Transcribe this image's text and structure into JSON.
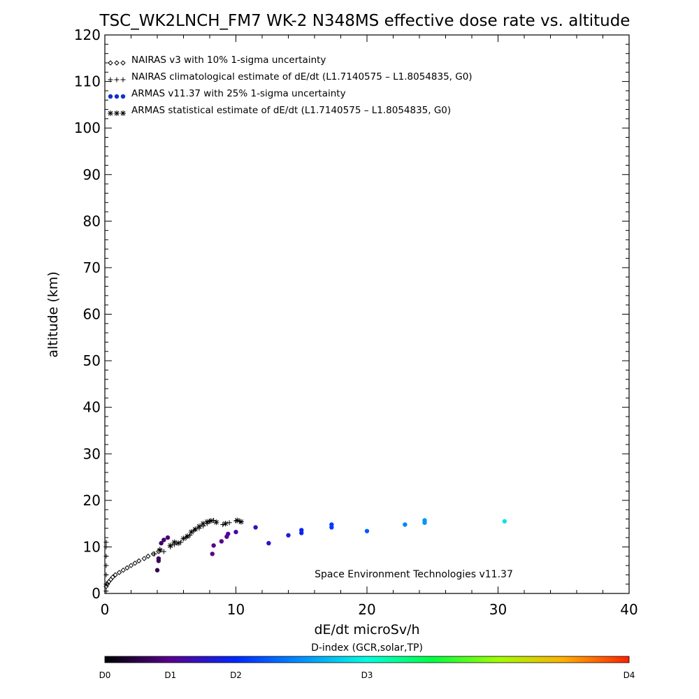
{
  "title": "TSC_WK2LNCH_FM7 WK-2 N348MS effective dose rate vs. altitude",
  "footer_text": "Space Environment Technologies v11.37",
  "legend": [
    {
      "symbol": "◇◇◇",
      "label": "NAIRAS v3 with 10% 1-sigma uncertainty"
    },
    {
      "symbol": "+++",
      "label": "NAIRAS climatological estimate of dE/dt (L1.7140575 – L1.8054835, G0)"
    },
    {
      "symbol": "●●●",
      "label": "ARMAS v11.37 with 25% 1-sigma uncertainty"
    },
    {
      "symbol": "***",
      "label": "ARMAS statistical estimate of dE/dt (L1.7140575 – L1.8054835, G0)"
    }
  ],
  "colorbar": {
    "label": "D-index (GCR,solar,TP)",
    "ticks": [
      {
        "label": "D0",
        "pos": 0
      },
      {
        "label": "D1",
        "pos": 0.125
      },
      {
        "label": "D2",
        "pos": 0.25
      },
      {
        "label": "D3",
        "pos": 0.5
      },
      {
        "label": "D4",
        "pos": 1.0
      }
    ]
  },
  "chart_data": {
    "type": "scatter",
    "title": "TSC_WK2LNCH_FM7 WK-2 N348MS effective dose rate vs. altitude",
    "xlabel": "dE/dt microSv/h",
    "ylabel": "altitude (km)",
    "xlim": [
      0,
      40
    ],
    "ylim": [
      0,
      120
    ],
    "xticks": [
      0,
      10,
      20,
      30,
      40
    ],
    "yticks": [
      0,
      10,
      20,
      30,
      40,
      50,
      60,
      70,
      80,
      90,
      100,
      110,
      120
    ],
    "series": [
      {
        "name": "NAIRAS v3 with 10% 1-sigma uncertainty",
        "marker": "diamond",
        "color": "#000000",
        "points": [
          [
            0.1,
            1.5
          ],
          [
            0.2,
            2.0
          ],
          [
            0.3,
            2.5
          ],
          [
            0.45,
            3.0
          ],
          [
            0.6,
            3.5
          ],
          [
            0.8,
            4.0
          ],
          [
            1.1,
            4.5
          ],
          [
            1.4,
            5.0
          ],
          [
            1.7,
            5.5
          ],
          [
            2.0,
            6.0
          ],
          [
            2.3,
            6.5
          ],
          [
            2.6,
            7.0
          ],
          [
            3.0,
            7.5
          ],
          [
            3.3,
            8.0
          ],
          [
            3.7,
            8.5
          ],
          [
            4.1,
            9.0
          ]
        ]
      },
      {
        "name": "NAIRAS climatological estimate of dE/dt (L1.7140575 – L1.8054835, G0)",
        "marker": "plus",
        "color": "#000000",
        "points": [
          [
            0.1,
            0.5
          ],
          [
            0.1,
            2.0
          ],
          [
            0.1,
            4.0
          ],
          [
            0.1,
            6.0
          ],
          [
            0.1,
            8.0
          ],
          [
            0.1,
            10.0
          ],
          [
            0.1,
            11.0
          ],
          [
            3.8,
            8.5
          ],
          [
            4.2,
            9.5
          ],
          [
            4.5,
            9.0
          ],
          [
            5.0,
            10.0
          ],
          [
            5.3,
            10.5
          ],
          [
            5.8,
            11.0
          ],
          [
            6.2,
            12.0
          ],
          [
            6.5,
            12.5
          ],
          [
            6.8,
            13.5
          ],
          [
            7.2,
            14.0
          ],
          [
            7.5,
            14.5
          ],
          [
            7.8,
            15.0
          ],
          [
            8.0,
            15.5
          ],
          [
            8.3,
            15.7
          ],
          [
            9.0,
            14.8
          ],
          [
            9.5,
            15.2
          ],
          [
            10.0,
            15.6
          ],
          [
            10.3,
            15.5
          ]
        ]
      },
      {
        "name": "ARMAS v11.37 with 25% 1-sigma uncertainty",
        "marker": "dot",
        "color_by": "D-index",
        "points": [
          [
            4.0,
            5.0,
            0.07
          ],
          [
            4.1,
            7.0,
            0.08
          ],
          [
            4.1,
            7.5,
            0.08
          ],
          [
            4.3,
            10.8,
            0.09
          ],
          [
            4.5,
            11.5,
            0.09
          ],
          [
            4.8,
            12.0,
            0.1
          ],
          [
            8.2,
            8.5,
            0.12
          ],
          [
            8.3,
            10.3,
            0.12
          ],
          [
            8.9,
            11.2,
            0.13
          ],
          [
            9.3,
            12.2,
            0.13
          ],
          [
            9.4,
            12.8,
            0.14
          ],
          [
            10.0,
            13.2,
            0.15
          ],
          [
            11.5,
            14.2,
            0.17
          ],
          [
            12.5,
            10.8,
            0.19
          ],
          [
            14.0,
            12.5,
            0.21
          ],
          [
            15.0,
            13.0,
            0.23
          ],
          [
            15.0,
            13.6,
            0.23
          ],
          [
            17.3,
            14.2,
            0.27
          ],
          [
            17.3,
            14.8,
            0.27
          ],
          [
            20.0,
            13.4,
            0.31
          ],
          [
            22.9,
            14.8,
            0.36
          ],
          [
            24.4,
            15.2,
            0.38
          ],
          [
            24.4,
            15.7,
            0.38
          ],
          [
            30.5,
            15.5,
            0.47
          ]
        ]
      },
      {
        "name": "ARMAS statistical estimate of dE/dt (L1.7140575 – L1.8054835, G0)",
        "marker": "asterisk",
        "color": "#000000",
        "points": [
          [
            4.2,
            9.3
          ],
          [
            5.0,
            10.3
          ],
          [
            5.3,
            11.0
          ],
          [
            5.6,
            10.8
          ],
          [
            6.0,
            11.8
          ],
          [
            6.3,
            12.3
          ],
          [
            6.6,
            13.2
          ],
          [
            6.9,
            13.8
          ],
          [
            7.2,
            14.4
          ],
          [
            7.5,
            15.0
          ],
          [
            7.8,
            15.4
          ],
          [
            8.1,
            15.6
          ],
          [
            8.5,
            15.3
          ],
          [
            9.2,
            15.0
          ],
          [
            10.1,
            15.7
          ],
          [
            10.4,
            15.4
          ]
        ]
      }
    ]
  }
}
